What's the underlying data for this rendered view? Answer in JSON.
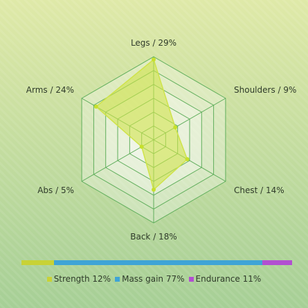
{
  "chart_data": {
    "type": "radar",
    "title": "",
    "axes": [
      {
        "label": "Legs / 29%",
        "value": 29
      },
      {
        "label": "Shoulders / 9%",
        "value": 9
      },
      {
        "label": "Chest / 14%",
        "value": 14
      },
      {
        "label": "Back / 18%",
        "value": 18
      },
      {
        "label": "Abs / 5%",
        "value": 5
      },
      {
        "label": "Arms / 24%",
        "value": 24
      }
    ],
    "rmax": 30,
    "grid": true,
    "series_color": "#cfe34a",
    "breakdown": [
      {
        "label": "Strength 12%",
        "value": 12,
        "color": "#c8d236"
      },
      {
        "label": "Mass gain 77%",
        "value": 77,
        "color": "#3fa4d6"
      },
      {
        "label": "Endurance 11%",
        "value": 11,
        "color": "#b24fd1"
      }
    ]
  }
}
